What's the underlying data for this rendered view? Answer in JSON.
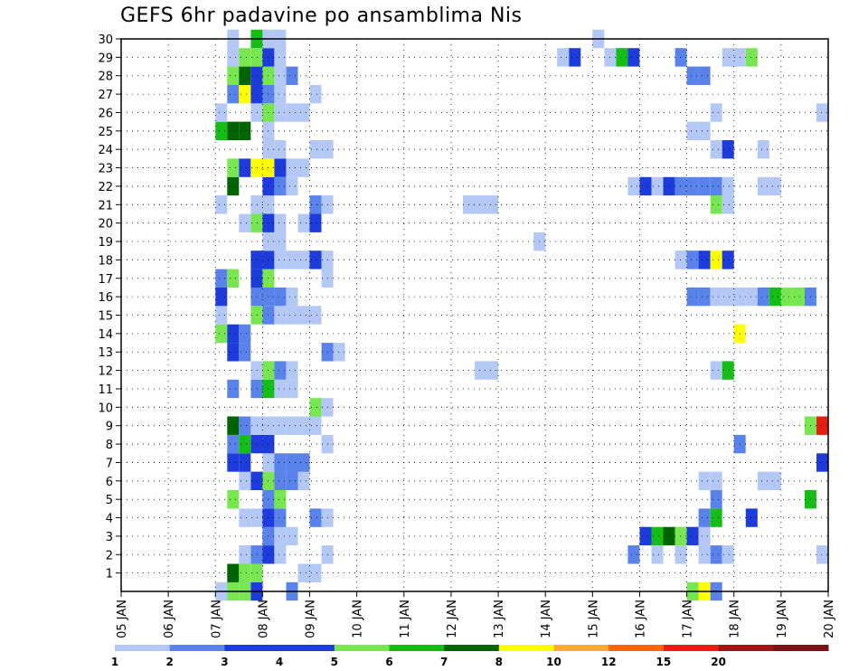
{
  "chart_data": {
    "type": "heatmap",
    "title": "GEFS 6hr padavine po ansamblima Nis",
    "xlabel": "",
    "ylabel": "",
    "x_tick_labels": [
      "05 JAN",
      "06 JAN",
      "07 JAN",
      "08 JAN",
      "09 JAN",
      "10 JAN",
      "11 JAN",
      "12 JAN",
      "13 JAN",
      "14 JAN",
      "15 JAN",
      "16 JAN",
      "17 JAN",
      "18 JAN",
      "19 JAN",
      "20 JAN"
    ],
    "x_range_days": [
      5,
      20
    ],
    "y_tick_labels": [
      "1",
      "2",
      "3",
      "4",
      "5",
      "6",
      "7",
      "8",
      "9",
      "10",
      "11",
      "12",
      "13",
      "14",
      "15",
      "16",
      "17",
      "18",
      "19",
      "20",
      "21",
      "22",
      "23",
      "24",
      "25",
      "26",
      "27",
      "28",
      "29",
      "30"
    ],
    "y_range": [
      0,
      30
    ],
    "grid": "dotted",
    "legend": {
      "position": "bottom",
      "labels": [
        "1",
        "2",
        "3",
        "4",
        "5",
        "6",
        "7",
        "8",
        "10",
        "12",
        "15",
        "20"
      ],
      "colors": [
        "#b4c8f5",
        "#5a82eb",
        "#1e3cdc",
        "#1e3cdc",
        "#78e650",
        "#14be14",
        "#006400",
        "#ffff00",
        "#ffaa32",
        "#ff6400",
        "#e61e14",
        "#a01414",
        "#781414"
      ]
    },
    "cell_time_step_days": 0.25,
    "cells": [
      {
        "x": 7.0,
        "y": 0,
        "v": 1
      },
      {
        "x": 7.25,
        "y": 0,
        "v": 5
      },
      {
        "x": 7.5,
        "y": 0,
        "v": 5
      },
      {
        "x": 7.75,
        "y": 0,
        "v": 4
      },
      {
        "x": 8.5,
        "y": 0,
        "v": 2
      },
      {
        "x": 17.0,
        "y": 0,
        "v": 5
      },
      {
        "x": 17.25,
        "y": 0,
        "v": 8
      },
      {
        "x": 17.5,
        "y": 0,
        "v": 2
      },
      {
        "x": 7.25,
        "y": 1,
        "v": 7
      },
      {
        "x": 7.5,
        "y": 1,
        "v": 5
      },
      {
        "x": 7.75,
        "y": 1,
        "v": 5
      },
      {
        "x": 8.75,
        "y": 1,
        "v": 1
      },
      {
        "x": 9.0,
        "y": 1,
        "v": 1
      },
      {
        "x": 7.5,
        "y": 2,
        "v": 1
      },
      {
        "x": 7.75,
        "y": 2,
        "v": 2
      },
      {
        "x": 8.0,
        "y": 2,
        "v": 3
      },
      {
        "x": 8.25,
        "y": 2,
        "v": 1
      },
      {
        "x": 9.25,
        "y": 2,
        "v": 1
      },
      {
        "x": 15.75,
        "y": 2,
        "v": 2
      },
      {
        "x": 16.25,
        "y": 2,
        "v": 1
      },
      {
        "x": 16.75,
        "y": 2,
        "v": 1
      },
      {
        "x": 17.25,
        "y": 2,
        "v": 1
      },
      {
        "x": 17.5,
        "y": 2,
        "v": 2
      },
      {
        "x": 17.75,
        "y": 2,
        "v": 1
      },
      {
        "x": 19.75,
        "y": 2,
        "v": 1
      },
      {
        "x": 8.0,
        "y": 3,
        "v": 2
      },
      {
        "x": 8.25,
        "y": 3,
        "v": 1
      },
      {
        "x": 8.5,
        "y": 3,
        "v": 1
      },
      {
        "x": 16.0,
        "y": 3,
        "v": 3
      },
      {
        "x": 16.25,
        "y": 3,
        "v": 6
      },
      {
        "x": 16.5,
        "y": 3,
        "v": 7
      },
      {
        "x": 16.75,
        "y": 3,
        "v": 5
      },
      {
        "x": 17.0,
        "y": 3,
        "v": 3
      },
      {
        "x": 17.25,
        "y": 3,
        "v": 1
      },
      {
        "x": 7.5,
        "y": 4,
        "v": 1
      },
      {
        "x": 7.75,
        "y": 4,
        "v": 1
      },
      {
        "x": 8.0,
        "y": 4,
        "v": 3
      },
      {
        "x": 8.25,
        "y": 4,
        "v": 2
      },
      {
        "x": 9.0,
        "y": 4,
        "v": 2
      },
      {
        "x": 9.25,
        "y": 4,
        "v": 1
      },
      {
        "x": 17.25,
        "y": 4,
        "v": 2
      },
      {
        "x": 17.5,
        "y": 4,
        "v": 6
      },
      {
        "x": 18.25,
        "y": 4,
        "v": 3
      },
      {
        "x": 7.25,
        "y": 5,
        "v": 5
      },
      {
        "x": 8.0,
        "y": 5,
        "v": 2
      },
      {
        "x": 8.25,
        "y": 5,
        "v": 5
      },
      {
        "x": 17.5,
        "y": 5,
        "v": 2
      },
      {
        "x": 19.5,
        "y": 5,
        "v": 6
      },
      {
        "x": 7.5,
        "y": 6,
        "v": 1
      },
      {
        "x": 7.75,
        "y": 6,
        "v": 3
      },
      {
        "x": 8.0,
        "y": 6,
        "v": 5
      },
      {
        "x": 8.25,
        "y": 6,
        "v": 2
      },
      {
        "x": 8.5,
        "y": 6,
        "v": 2
      },
      {
        "x": 8.75,
        "y": 6,
        "v": 1
      },
      {
        "x": 17.25,
        "y": 6,
        "v": 1
      },
      {
        "x": 17.5,
        "y": 6,
        "v": 1
      },
      {
        "x": 18.5,
        "y": 6,
        "v": 1
      },
      {
        "x": 18.75,
        "y": 6,
        "v": 1
      },
      {
        "x": 7.25,
        "y": 7,
        "v": 3
      },
      {
        "x": 7.5,
        "y": 7,
        "v": 3
      },
      {
        "x": 8.0,
        "y": 7,
        "v": 1
      },
      {
        "x": 8.25,
        "y": 7,
        "v": 2
      },
      {
        "x": 8.5,
        "y": 7,
        "v": 2
      },
      {
        "x": 8.75,
        "y": 7,
        "v": 2
      },
      {
        "x": 19.75,
        "y": 7,
        "v": 3
      },
      {
        "x": 7.25,
        "y": 8,
        "v": 2
      },
      {
        "x": 7.5,
        "y": 8,
        "v": 6
      },
      {
        "x": 7.75,
        "y": 8,
        "v": 3
      },
      {
        "x": 8.0,
        "y": 8,
        "v": 3
      },
      {
        "x": 9.25,
        "y": 8,
        "v": 1
      },
      {
        "x": 18.0,
        "y": 8,
        "v": 2
      },
      {
        "x": 7.25,
        "y": 9,
        "v": 7
      },
      {
        "x": 7.5,
        "y": 9,
        "v": 2
      },
      {
        "x": 7.75,
        "y": 9,
        "v": 1
      },
      {
        "x": 8.0,
        "y": 9,
        "v": 1
      },
      {
        "x": 8.25,
        "y": 9,
        "v": 1
      },
      {
        "x": 8.5,
        "y": 9,
        "v": 1
      },
      {
        "x": 8.75,
        "y": 9,
        "v": 1
      },
      {
        "x": 9.0,
        "y": 9,
        "v": 1
      },
      {
        "x": 19.5,
        "y": 9,
        "v": 5
      },
      {
        "x": 19.75,
        "y": 9,
        "v": 15
      },
      {
        "x": 9.0,
        "y": 10,
        "v": 5
      },
      {
        "x": 9.25,
        "y": 10,
        "v": 1
      },
      {
        "x": 7.25,
        "y": 11,
        "v": 2
      },
      {
        "x": 7.75,
        "y": 11,
        "v": 2
      },
      {
        "x": 8.0,
        "y": 11,
        "v": 6
      },
      {
        "x": 8.25,
        "y": 11,
        "v": 1
      },
      {
        "x": 8.5,
        "y": 11,
        "v": 1
      },
      {
        "x": 7.75,
        "y": 12,
        "v": 1
      },
      {
        "x": 8.0,
        "y": 12,
        "v": 5
      },
      {
        "x": 8.25,
        "y": 12,
        "v": 2
      },
      {
        "x": 8.5,
        "y": 12,
        "v": 1
      },
      {
        "x": 12.5,
        "y": 12,
        "v": 1
      },
      {
        "x": 12.75,
        "y": 12,
        "v": 1
      },
      {
        "x": 17.5,
        "y": 12,
        "v": 1
      },
      {
        "x": 17.75,
        "y": 12,
        "v": 6
      },
      {
        "x": 7.25,
        "y": 13,
        "v": 3
      },
      {
        "x": 7.5,
        "y": 13,
        "v": 2
      },
      {
        "x": 9.25,
        "y": 13,
        "v": 2
      },
      {
        "x": 9.5,
        "y": 13,
        "v": 1
      },
      {
        "x": 7.0,
        "y": 14,
        "v": 5
      },
      {
        "x": 7.25,
        "y": 14,
        "v": 3
      },
      {
        "x": 7.5,
        "y": 14,
        "v": 2
      },
      {
        "x": 18.0,
        "y": 14,
        "v": 8
      },
      {
        "x": 7.0,
        "y": 15,
        "v": 1
      },
      {
        "x": 7.75,
        "y": 15,
        "v": 5
      },
      {
        "x": 8.0,
        "y": 15,
        "v": 2
      },
      {
        "x": 8.25,
        "y": 15,
        "v": 1
      },
      {
        "x": 8.5,
        "y": 15,
        "v": 1
      },
      {
        "x": 8.75,
        "y": 15,
        "v": 1
      },
      {
        "x": 9.0,
        "y": 15,
        "v": 1
      },
      {
        "x": 7.0,
        "y": 16,
        "v": 3
      },
      {
        "x": 7.75,
        "y": 16,
        "v": 2
      },
      {
        "x": 8.0,
        "y": 16,
        "v": 2
      },
      {
        "x": 8.25,
        "y": 16,
        "v": 2
      },
      {
        "x": 8.5,
        "y": 16,
        "v": 1
      },
      {
        "x": 17.0,
        "y": 16,
        "v": 2
      },
      {
        "x": 17.25,
        "y": 16,
        "v": 2
      },
      {
        "x": 17.5,
        "y": 16,
        "v": 1
      },
      {
        "x": 17.75,
        "y": 16,
        "v": 1
      },
      {
        "x": 18.0,
        "y": 16,
        "v": 1
      },
      {
        "x": 18.25,
        "y": 16,
        "v": 1
      },
      {
        "x": 18.5,
        "y": 16,
        "v": 2
      },
      {
        "x": 18.75,
        "y": 16,
        "v": 6
      },
      {
        "x": 19.0,
        "y": 16,
        "v": 5
      },
      {
        "x": 19.25,
        "y": 16,
        "v": 5
      },
      {
        "x": 19.5,
        "y": 16,
        "v": 2
      },
      {
        "x": 7.0,
        "y": 17,
        "v": 2
      },
      {
        "x": 7.25,
        "y": 17,
        "v": 5
      },
      {
        "x": 7.75,
        "y": 17,
        "v": 3
      },
      {
        "x": 8.0,
        "y": 17,
        "v": 5
      },
      {
        "x": 9.25,
        "y": 17,
        "v": 1
      },
      {
        "x": 7.75,
        "y": 18,
        "v": 3
      },
      {
        "x": 8.0,
        "y": 18,
        "v": 3
      },
      {
        "x": 8.25,
        "y": 18,
        "v": 1
      },
      {
        "x": 8.5,
        "y": 18,
        "v": 1
      },
      {
        "x": 8.75,
        "y": 18,
        "v": 1
      },
      {
        "x": 9.0,
        "y": 18,
        "v": 3
      },
      {
        "x": 9.25,
        "y": 18,
        "v": 1
      },
      {
        "x": 16.75,
        "y": 18,
        "v": 1
      },
      {
        "x": 17.0,
        "y": 18,
        "v": 2
      },
      {
        "x": 17.25,
        "y": 18,
        "v": 3
      },
      {
        "x": 17.5,
        "y": 18,
        "v": 8
      },
      {
        "x": 17.75,
        "y": 18,
        "v": 3
      },
      {
        "x": 8.0,
        "y": 19,
        "v": 1
      },
      {
        "x": 8.25,
        "y": 19,
        "v": 1
      },
      {
        "x": 13.75,
        "y": 19,
        "v": 1
      },
      {
        "x": 7.5,
        "y": 20,
        "v": 1
      },
      {
        "x": 7.75,
        "y": 20,
        "v": 5
      },
      {
        "x": 8.0,
        "y": 20,
        "v": 3
      },
      {
        "x": 8.25,
        "y": 20,
        "v": 1
      },
      {
        "x": 8.75,
        "y": 20,
        "v": 1
      },
      {
        "x": 9.0,
        "y": 20,
        "v": 3
      },
      {
        "x": 7.0,
        "y": 21,
        "v": 1
      },
      {
        "x": 7.75,
        "y": 21,
        "v": 1
      },
      {
        "x": 8.0,
        "y": 21,
        "v": 1
      },
      {
        "x": 9.0,
        "y": 21,
        "v": 2
      },
      {
        "x": 9.25,
        "y": 21,
        "v": 1
      },
      {
        "x": 12.25,
        "y": 21,
        "v": 1
      },
      {
        "x": 12.5,
        "y": 21,
        "v": 1
      },
      {
        "x": 12.75,
        "y": 21,
        "v": 1
      },
      {
        "x": 17.5,
        "y": 21,
        "v": 5
      },
      {
        "x": 17.75,
        "y": 21,
        "v": 1
      },
      {
        "x": 7.25,
        "y": 22,
        "v": 7
      },
      {
        "x": 8.0,
        "y": 22,
        "v": 3
      },
      {
        "x": 8.25,
        "y": 22,
        "v": 2
      },
      {
        "x": 8.5,
        "y": 22,
        "v": 1
      },
      {
        "x": 15.75,
        "y": 22,
        "v": 1
      },
      {
        "x": 16.0,
        "y": 22,
        "v": 3
      },
      {
        "x": 16.25,
        "y": 22,
        "v": 1
      },
      {
        "x": 16.5,
        "y": 22,
        "v": 3
      },
      {
        "x": 16.75,
        "y": 22,
        "v": 2
      },
      {
        "x": 17.0,
        "y": 22,
        "v": 2
      },
      {
        "x": 17.25,
        "y": 22,
        "v": 2
      },
      {
        "x": 17.5,
        "y": 22,
        "v": 2
      },
      {
        "x": 17.75,
        "y": 22,
        "v": 1
      },
      {
        "x": 18.5,
        "y": 22,
        "v": 1
      },
      {
        "x": 18.75,
        "y": 22,
        "v": 1
      },
      {
        "x": 7.25,
        "y": 23,
        "v": 5
      },
      {
        "x": 7.5,
        "y": 23,
        "v": 3
      },
      {
        "x": 7.75,
        "y": 23,
        "v": 9
      },
      {
        "x": 8.0,
        "y": 23,
        "v": 8
      },
      {
        "x": 8.25,
        "y": 23,
        "v": 3
      },
      {
        "x": 8.5,
        "y": 23,
        "v": 1
      },
      {
        "x": 8.75,
        "y": 23,
        "v": 1
      },
      {
        "x": 8.0,
        "y": 24,
        "v": 1
      },
      {
        "x": 8.25,
        "y": 24,
        "v": 1
      },
      {
        "x": 9.0,
        "y": 24,
        "v": 1
      },
      {
        "x": 9.25,
        "y": 24,
        "v": 1
      },
      {
        "x": 17.5,
        "y": 24,
        "v": 1
      },
      {
        "x": 17.75,
        "y": 24,
        "v": 3
      },
      {
        "x": 18.5,
        "y": 24,
        "v": 1
      },
      {
        "x": 7.0,
        "y": 25,
        "v": 6
      },
      {
        "x": 7.25,
        "y": 25,
        "v": 7
      },
      {
        "x": 7.5,
        "y": 25,
        "v": 7.5
      },
      {
        "x": 8.0,
        "y": 25,
        "v": 1
      },
      {
        "x": 17.0,
        "y": 25,
        "v": 1
      },
      {
        "x": 17.25,
        "y": 25,
        "v": 1
      },
      {
        "x": 7.0,
        "y": 26,
        "v": 1
      },
      {
        "x": 7.75,
        "y": 26,
        "v": 1
      },
      {
        "x": 8.0,
        "y": 26,
        "v": 5
      },
      {
        "x": 8.25,
        "y": 26,
        "v": 1
      },
      {
        "x": 8.5,
        "y": 26,
        "v": 1
      },
      {
        "x": 8.75,
        "y": 26,
        "v": 1
      },
      {
        "x": 17.5,
        "y": 26,
        "v": 1
      },
      {
        "x": 19.75,
        "y": 26,
        "v": 1
      },
      {
        "x": 7.25,
        "y": 27,
        "v": 2
      },
      {
        "x": 7.5,
        "y": 27,
        "v": 8
      },
      {
        "x": 7.75,
        "y": 27,
        "v": 3
      },
      {
        "x": 8.0,
        "y": 27,
        "v": 2
      },
      {
        "x": 8.25,
        "y": 27,
        "v": 1
      },
      {
        "x": 9.0,
        "y": 27,
        "v": 1
      },
      {
        "x": 7.25,
        "y": 28,
        "v": 5
      },
      {
        "x": 7.5,
        "y": 28,
        "v": 7
      },
      {
        "x": 7.75,
        "y": 28,
        "v": 3
      },
      {
        "x": 8.0,
        "y": 28,
        "v": 5
      },
      {
        "x": 8.25,
        "y": 28,
        "v": 1
      },
      {
        "x": 8.5,
        "y": 28,
        "v": 2
      },
      {
        "x": 17.0,
        "y": 28,
        "v": 2
      },
      {
        "x": 17.25,
        "y": 28,
        "v": 2
      },
      {
        "x": 7.25,
        "y": 29,
        "v": 1
      },
      {
        "x": 7.5,
        "y": 29,
        "v": 5
      },
      {
        "x": 7.75,
        "y": 29,
        "v": 5
      },
      {
        "x": 8.0,
        "y": 29,
        "v": 3
      },
      {
        "x": 8.25,
        "y": 29,
        "v": 1
      },
      {
        "x": 14.25,
        "y": 29,
        "v": 1
      },
      {
        "x": 14.5,
        "y": 29,
        "v": 3
      },
      {
        "x": 15.25,
        "y": 29,
        "v": 1
      },
      {
        "x": 15.5,
        "y": 29,
        "v": 6
      },
      {
        "x": 15.75,
        "y": 29,
        "v": 3
      },
      {
        "x": 16.75,
        "y": 29,
        "v": 2
      },
      {
        "x": 17.75,
        "y": 29,
        "v": 1
      },
      {
        "x": 18.0,
        "y": 29,
        "v": 1
      },
      {
        "x": 18.25,
        "y": 29,
        "v": 5
      },
      {
        "x": 7.25,
        "y": 30,
        "v": 1
      },
      {
        "x": 7.75,
        "y": 30,
        "v": 6
      },
      {
        "x": 8.0,
        "y": 30,
        "v": 1
      },
      {
        "x": 8.25,
        "y": 30,
        "v": 1
      },
      {
        "x": 15.0,
        "y": 30,
        "v": 1
      }
    ]
  }
}
